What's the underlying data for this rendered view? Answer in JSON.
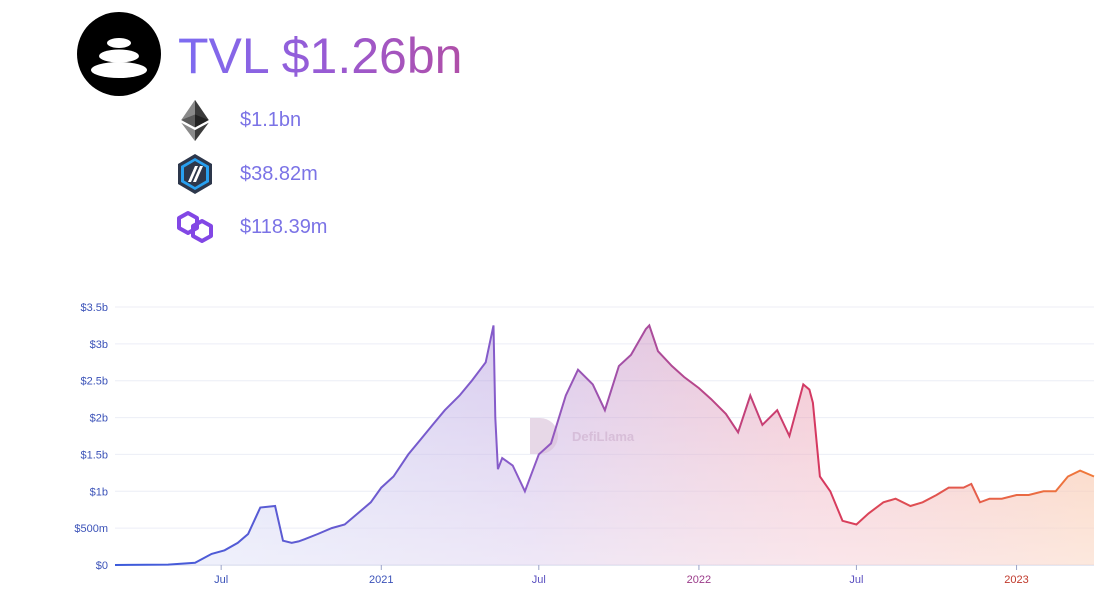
{
  "header": {
    "logo_icon": "balancer-logo-icon",
    "title": "TVL $1.26bn"
  },
  "chains": [
    {
      "icon": "ethereum-icon",
      "value": "$1.1bn"
    },
    {
      "icon": "arbitrum-icon",
      "value": "$38.82m"
    },
    {
      "icon": "polygon-icon",
      "value": "$118.39m"
    }
  ],
  "watermark": "DefiLlama",
  "colors": {
    "title_start": "#7c6cf2",
    "title_end": "#b04fa8",
    "chain_value": "#7b73e6",
    "line_start": "#3b5bdb",
    "line_mid": "#8b5bc8",
    "line_late": "#d6385f",
    "line_end": "#f07a3a"
  },
  "chart_data": {
    "type": "area",
    "title": "",
    "xlabel": "",
    "ylabel": "",
    "ylim": [
      0,
      3.5
    ],
    "unit": "billions USD",
    "grid": true,
    "y_ticks": [
      "$0",
      "$500m",
      "$1b",
      "$1.5b",
      "$2b",
      "$2.5b",
      "$3b",
      "$3.5b"
    ],
    "x_ticks": [
      "Jul",
      "2021",
      "Jul",
      "2022",
      "Jul",
      "2023"
    ],
    "x_range": [
      "2020-03-01",
      "2023-03-31"
    ],
    "series": [
      {
        "x": [
          "2020-03-01",
          "2020-05-01",
          "2020-06-01",
          "2020-06-20",
          "2020-07-05",
          "2020-07-20",
          "2020-08-01",
          "2020-08-15",
          "2020-09-01",
          "2020-09-10",
          "2020-09-20",
          "2020-09-28",
          "2020-10-05",
          "2020-10-20",
          "2020-11-05",
          "2020-11-20",
          "2020-12-05",
          "2020-12-20",
          "2021-01-01",
          "2021-01-15",
          "2021-02-01",
          "2021-02-15",
          "2021-03-01",
          "2021-03-15",
          "2021-04-01",
          "2021-04-15",
          "2021-05-01",
          "2021-05-10",
          "2021-05-12",
          "2021-05-15",
          "2021-05-20",
          "2021-06-01",
          "2021-06-15",
          "2021-07-01",
          "2021-07-15",
          "2021-08-01",
          "2021-08-15",
          "2021-09-01",
          "2021-09-15",
          "2021-10-01",
          "2021-10-15",
          "2021-11-01",
          "2021-11-05",
          "2021-11-15",
          "2021-12-01",
          "2021-12-15",
          "2022-01-01",
          "2022-01-15",
          "2022-02-01",
          "2022-02-15",
          "2022-03-01",
          "2022-03-15",
          "2022-04-01",
          "2022-04-15",
          "2022-05-01",
          "2022-05-08",
          "2022-05-12",
          "2022-05-20",
          "2022-06-01",
          "2022-06-15",
          "2022-07-01",
          "2022-07-15",
          "2022-08-01",
          "2022-08-15",
          "2022-09-01",
          "2022-09-15",
          "2022-10-01",
          "2022-10-15",
          "2022-11-01",
          "2022-11-10",
          "2022-11-20",
          "2022-12-01",
          "2022-12-15",
          "2023-01-01",
          "2023-01-15",
          "2023-02-01",
          "2023-02-15",
          "2023-03-01",
          "2023-03-15",
          "2023-03-31"
        ],
        "values": [
          0.0,
          0.005,
          0.03,
          0.15,
          0.2,
          0.3,
          0.42,
          0.78,
          0.8,
          0.33,
          0.3,
          0.32,
          0.35,
          0.42,
          0.5,
          0.55,
          0.7,
          0.85,
          1.05,
          1.2,
          1.5,
          1.7,
          1.9,
          2.1,
          2.3,
          2.5,
          2.75,
          3.25,
          2.0,
          1.3,
          1.45,
          1.35,
          1.0,
          1.5,
          1.65,
          2.3,
          2.65,
          2.45,
          2.1,
          2.7,
          2.85,
          3.2,
          3.25,
          2.9,
          2.7,
          2.55,
          2.4,
          2.25,
          2.05,
          1.8,
          2.3,
          1.9,
          2.1,
          1.75,
          2.45,
          2.38,
          2.2,
          1.2,
          1.0,
          0.6,
          0.55,
          0.7,
          0.85,
          0.9,
          0.8,
          0.85,
          0.95,
          1.05,
          1.05,
          1.1,
          0.85,
          0.9,
          0.9,
          0.95,
          0.95,
          1.0,
          1.0,
          1.2,
          1.28,
          1.2
        ]
      }
    ]
  }
}
